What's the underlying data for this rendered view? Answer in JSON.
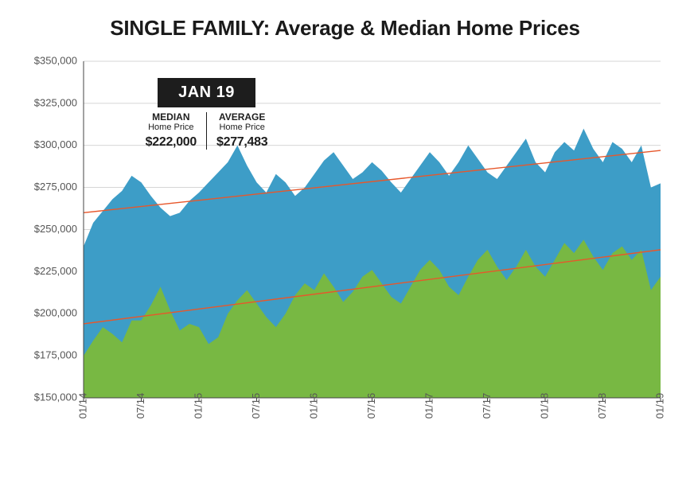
{
  "title": "SINGLE FAMILY: Average & Median Home Prices",
  "title_fontsize": 26,
  "title_color": "#1a1a1a",
  "callout": {
    "badge_label": "JAN 19",
    "badge_bg": "#1d1d1d",
    "badge_fg": "#ffffff",
    "left_heading1": "MEDIAN",
    "left_heading2": "Home Price",
    "left_value": "$222,000",
    "right_heading1": "AVERAGE",
    "right_heading2": "Home Price",
    "right_value": "$277,483"
  },
  "chart": {
    "type": "area",
    "background_color": "#ffffff",
    "grid_color": "#c8c8c8",
    "axis_color": "#444444",
    "label_color": "#555555",
    "label_fontsize": 13,
    "ylim": [
      150000,
      350000
    ],
    "ytick_step": 25000,
    "ytick_labels": [
      "$150,000",
      "$175,000",
      "$200,000",
      "$225,000",
      "$250,000",
      "$275,000",
      "$300,000",
      "$325,000",
      "$350,000"
    ],
    "x_count": 61,
    "xtick_indices": [
      0,
      6,
      12,
      18,
      24,
      30,
      36,
      42,
      48,
      54,
      60
    ],
    "xtick_labels": [
      "01/14",
      "07/14",
      "01/15",
      "07/15",
      "01/16",
      "07/16",
      "01/17",
      "07/17",
      "01/18",
      "07/18",
      "01/19"
    ],
    "xtick_rotation": -90,
    "series": [
      {
        "name": "Average Home Price",
        "color": "#3d9dc7",
        "values": [
          240000,
          254000,
          261000,
          268000,
          273000,
          282000,
          278000,
          270000,
          263000,
          258000,
          260000,
          267000,
          272000,
          278000,
          284000,
          290000,
          300000,
          288000,
          278000,
          272000,
          283000,
          278000,
          270000,
          275000,
          283000,
          291000,
          296000,
          288000,
          280000,
          284000,
          290000,
          285000,
          278000,
          272000,
          280000,
          288000,
          296000,
          290000,
          282000,
          290000,
          300000,
          292000,
          284000,
          280000,
          288000,
          296000,
          304000,
          290000,
          284000,
          296000,
          302000,
          297000,
          310000,
          298000,
          290000,
          302000,
          298000,
          290000,
          300000,
          275000,
          277483
        ],
        "trend": {
          "color": "#e7572b",
          "start_value": 260000,
          "end_value": 297000
        }
      },
      {
        "name": "Median Home Price",
        "color": "#78b843",
        "values": [
          175000,
          184000,
          192000,
          188000,
          183000,
          196000,
          196000,
          205000,
          216000,
          202000,
          190000,
          194000,
          192000,
          182000,
          186000,
          200000,
          208000,
          214000,
          206000,
          198000,
          192000,
          200000,
          211000,
          218000,
          214000,
          224000,
          216000,
          207000,
          213000,
          222000,
          226000,
          218000,
          210000,
          206000,
          216000,
          226000,
          232000,
          226000,
          216000,
          211000,
          222000,
          232000,
          238000,
          228000,
          220000,
          228000,
          238000,
          228000,
          222000,
          232000,
          242000,
          236000,
          244000,
          234000,
          226000,
          236000,
          240000,
          232000,
          238000,
          214000,
          222000
        ],
        "trend": {
          "color": "#e7572b",
          "start_value": 194000,
          "end_value": 238000
        }
      }
    ]
  }
}
